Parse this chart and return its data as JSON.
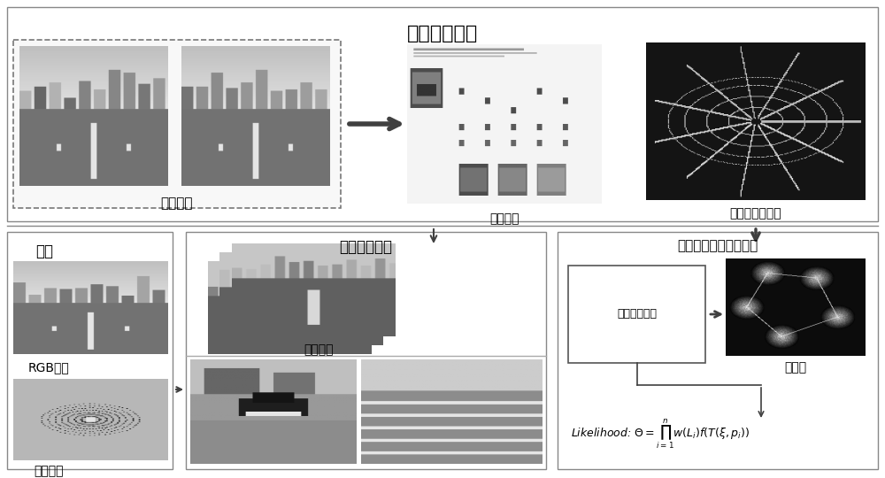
{
  "white": "#ffffff",
  "black": "#000000",
  "light_gray": "#e8e8e8",
  "mid_gray": "#a0a0a0",
  "dark_gray": "#505050",
  "title_top": "多模态地图库",
  "label_visual": "视觉特征",
  "label_bow": "词袋模型",
  "label_hd_map": "高精度语义地图",
  "label_input": "输入",
  "label_rgb": "RGB图像",
  "label_lidar": "激光点云",
  "label_bow_match": "词袋模型匹配",
  "label_candidate": "候选位姿",
  "label_sem_match": "语义地图激光雷达匹配",
  "label_normal": "正太分布变换",
  "label_grid": "格网化",
  "font_size_title": 13,
  "font_size_label": 9,
  "font_size_small": 7
}
